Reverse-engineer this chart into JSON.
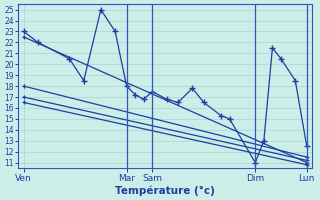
{
  "xlabel": "Température (°c)",
  "ylim": [
    10.5,
    25.5
  ],
  "yticks": [
    11,
    12,
    13,
    14,
    15,
    16,
    17,
    18,
    19,
    20,
    21,
    22,
    23,
    24,
    25
  ],
  "bg_color": "#cceee8",
  "line_color": "#1c3fa0",
  "grid_color": "#aad4cc",
  "vline_color": "#3355bb",
  "xtick_labels": [
    "Ven",
    "Mar",
    "Sam",
    "Dim",
    "Lun"
  ],
  "xtick_positions": [
    0,
    36,
    45,
    81,
    99
  ],
  "xlim": [
    -2,
    101
  ],
  "main_x": [
    0,
    5,
    16,
    21,
    27,
    32,
    36,
    39,
    42,
    45,
    50,
    54,
    59,
    63,
    69,
    72,
    81,
    84,
    87,
    90,
    95,
    99
  ],
  "main_y": [
    23,
    22,
    20.5,
    18.5,
    25,
    23,
    18,
    17.2,
    16.8,
    17.5,
    16.8,
    16.5,
    17.8,
    16.5,
    15.3,
    15,
    11,
    13,
    21.5,
    20.5,
    18.5,
    12.5
  ],
  "trend1_x": [
    0,
    99
  ],
  "trend1_y": [
    22.5,
    11.0
  ],
  "trend2_x": [
    0,
    99
  ],
  "trend2_y": [
    18.0,
    11.5
  ],
  "trend3_x": [
    0,
    99
  ],
  "trend3_y": [
    17.0,
    11.2
  ],
  "trend4_x": [
    0,
    99
  ],
  "trend4_y": [
    16.5,
    10.8
  ],
  "vlines": [
    36,
    45,
    81,
    99
  ],
  "marker": "+"
}
